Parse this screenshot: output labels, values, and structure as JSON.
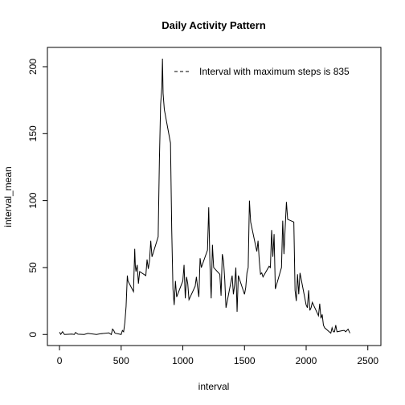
{
  "chart_data": {
    "type": "line",
    "title": "Daily Activity Pattern",
    "xlabel": "interval",
    "ylabel": "interval_mean",
    "legend_text": "Interval with maximum steps is 835",
    "legend_position": "top",
    "color": "#000000",
    "x": [
      0,
      10,
      25,
      40,
      55,
      100,
      120,
      130,
      150,
      200,
      230,
      300,
      330,
      400,
      420,
      430,
      440,
      450,
      500,
      510,
      520,
      530,
      540,
      550,
      555,
      600,
      610,
      615,
      620,
      630,
      640,
      650,
      700,
      710,
      720,
      730,
      740,
      750,
      800,
      810,
      820,
      830,
      835,
      840,
      850,
      900,
      910,
      920,
      930,
      940,
      950,
      1000,
      1010,
      1020,
      1030,
      1040,
      1050,
      1100,
      1110,
      1120,
      1130,
      1140,
      1150,
      1200,
      1210,
      1220,
      1230,
      1240,
      1250,
      1300,
      1310,
      1320,
      1330,
      1340,
      1350,
      1400,
      1410,
      1420,
      1430,
      1440,
      1450,
      1500,
      1510,
      1520,
      1530,
      1540,
      1550,
      1600,
      1610,
      1620,
      1630,
      1640,
      1650,
      1700,
      1710,
      1720,
      1730,
      1740,
      1750,
      1800,
      1810,
      1820,
      1830,
      1840,
      1850,
      1900,
      1910,
      1920,
      1930,
      1940,
      1950,
      2000,
      2010,
      2020,
      2030,
      2040,
      2050,
      2100,
      2110,
      2120,
      2130,
      2140,
      2150,
      2200,
      2210,
      2220,
      2230,
      2240,
      2250,
      2300,
      2310,
      2320,
      2330,
      2340,
      2355
    ],
    "values": [
      1.7,
      0.1,
      2.1,
      0,
      0.1,
      0.3,
      0,
      1.5,
      0.2,
      0,
      0.8,
      0,
      0.5,
      1.2,
      0,
      4,
      3,
      1,
      0,
      3,
      2,
      9,
      21,
      44,
      40,
      32,
      64,
      51,
      47,
      52,
      38,
      47,
      44,
      56,
      49,
      55,
      70,
      58,
      73,
      130,
      172,
      185,
      206,
      180,
      168,
      143,
      78,
      34,
      22,
      40,
      28,
      40,
      52,
      27,
      43,
      38,
      26,
      36,
      43,
      35,
      28,
      57,
      50,
      63,
      95,
      52,
      27,
      67,
      50,
      45,
      29,
      60,
      55,
      41,
      20,
      44,
      30,
      37,
      50,
      17,
      44,
      30,
      35,
      46,
      50,
      100,
      84,
      62,
      70,
      55,
      45,
      46,
      43,
      51,
      50,
      78,
      58,
      75,
      34,
      50,
      85,
      60,
      80,
      99,
      86,
      84,
      33,
      25,
      45,
      30,
      46,
      22,
      20,
      33,
      18,
      20,
      24,
      14,
      23,
      12,
      15,
      7,
      5,
      1,
      5,
      2,
      2,
      7,
      2,
      3,
      3,
      2,
      3,
      4,
      1
    ],
    "xlim": [
      -98,
      2606
    ],
    "ylim": [
      -8.25,
      214.4
    ],
    "xticks": [
      0,
      500,
      1000,
      1500,
      2000,
      2500
    ],
    "yticks": [
      0,
      50,
      100,
      150,
      200
    ]
  }
}
